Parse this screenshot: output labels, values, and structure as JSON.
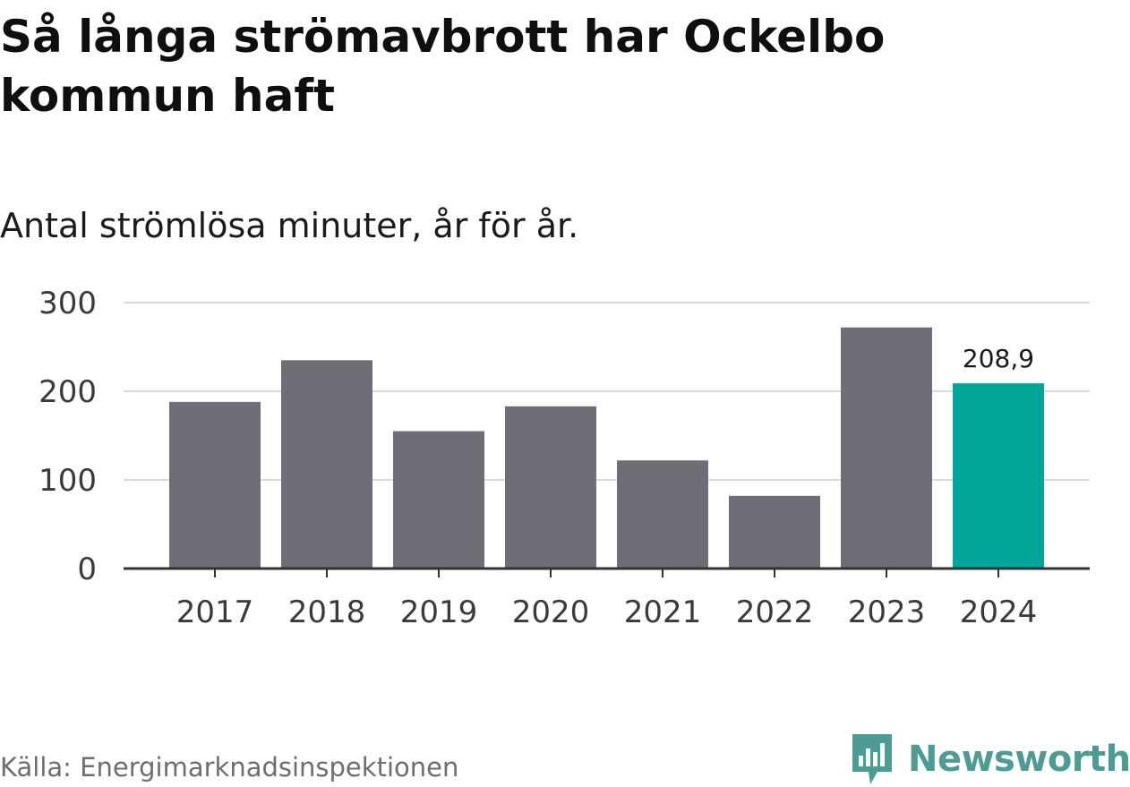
{
  "header": {
    "title": "Så långa strömavbrott har Ockelbo kommun haft",
    "subtitle": "Antal strömlösa minuter, år för år."
  },
  "footer": {
    "source": "Källa: Energimarknadsinspektionen",
    "brand": "Newsworthy"
  },
  "colors": {
    "bar": "#6f6e76",
    "highlight": "#00a499",
    "grid": "#d9d9d9",
    "axis": "#333333",
    "brand": "#4f9b94"
  },
  "chart_data": {
    "type": "bar",
    "title": "Så långa strömavbrott har Ockelbo kommun haft",
    "subtitle": "Antal strömlösa minuter, år för år.",
    "xlabel": "",
    "ylabel": "",
    "categories": [
      "2017",
      "2018",
      "2019",
      "2020",
      "2021",
      "2022",
      "2023",
      "2024"
    ],
    "values": [
      188,
      235,
      155,
      183,
      122,
      82,
      272,
      208.9
    ],
    "ylim": [
      0,
      300
    ],
    "yticks": [
      "0",
      "100",
      "200",
      "300"
    ],
    "grid": true,
    "highlight_index": 7,
    "data_labels": [
      {
        "category": "2024",
        "text": "208,9"
      }
    ]
  }
}
